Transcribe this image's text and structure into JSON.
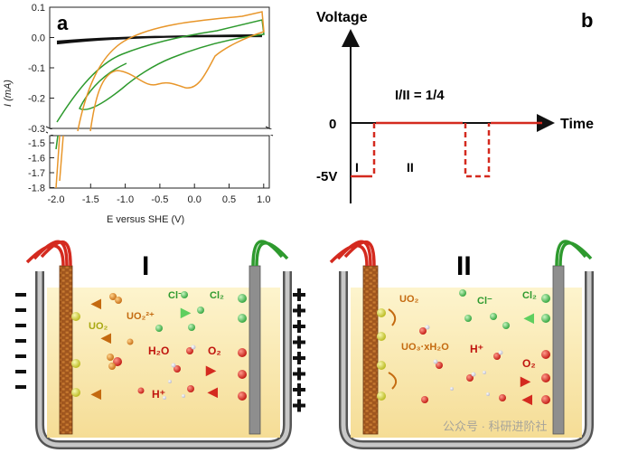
{
  "panel_a": {
    "label": "a",
    "xlabel": "E versus SHE (V)",
    "ylabel": "I (mA)",
    "upper_ticks": [
      "0.1",
      "0.0",
      "-0.1",
      "-0.2",
      "-0.3"
    ],
    "lower_ticks": [
      "-1.5",
      "-1.6",
      "-1.7",
      "-1.8"
    ],
    "x_ticks": [
      "-2.0",
      "-1.5",
      "-1.0",
      "-0.5",
      "0.0",
      "0.5",
      "1.0"
    ],
    "colors": {
      "black": "#111111",
      "green": "#2e9a2e",
      "orange": "#e8962a"
    }
  },
  "panel_b": {
    "label": "b",
    "ylabel": "Voltage",
    "xlabel": "Time",
    "ratio": "I/II = 1/4",
    "zero": "0",
    "neg": "-5V",
    "phase1": "I",
    "phase2": "II",
    "colors": {
      "pulse": "#d42a1f",
      "axis": "#111111"
    }
  },
  "cell_I": {
    "title": "I",
    "species": {
      "uo2": "UO₂",
      "uo2_ion": "UO₂²⁺",
      "cl_minus": "Cl⁻",
      "cl2": "Cl₂",
      "h2o": "H₂O",
      "o2": "O₂",
      "h_plus": "H⁺"
    },
    "left_charge": "−",
    "right_charge": "+"
  },
  "cell_II": {
    "title": "II",
    "species": {
      "uo2": "UO₂",
      "uo3": "UO₃·xH₂O",
      "cl_minus": "Cl⁻",
      "cl2": "Cl₂",
      "h_plus": "H⁺",
      "o2": "O₂"
    }
  },
  "watermark": "公众号 · 科研进阶社"
}
